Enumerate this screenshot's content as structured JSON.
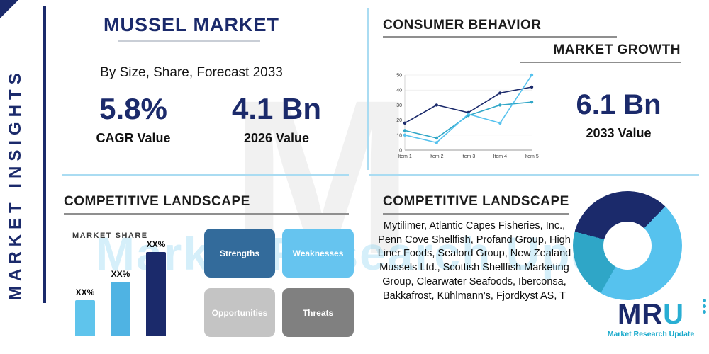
{
  "colors": {
    "navy": "#1b2a6b",
    "light_blue": "#56c2ee",
    "teal": "#2fa6c7",
    "steel_blue": "#336b9b",
    "light_gray": "#c2c2c2",
    "dark_gray": "#878787",
    "divider_blue": "#aadcf2"
  },
  "sidebar": {
    "label": "MARKET INSIGHTS"
  },
  "header": {
    "title": "MUSSEL MARKET",
    "subtitle": "By Size, Share, Forecast 2033"
  },
  "stats": {
    "cagr": {
      "value": "5.8%",
      "label": "CAGR Value"
    },
    "value_2026": {
      "value": "4.1 Bn",
      "label": "2026 Value"
    },
    "value_2033": {
      "value": "6.1 Bn",
      "label": "2033 Value"
    }
  },
  "sections": {
    "consumer_behavior": "CONSUMER BEHAVIOR",
    "market_growth": "MARKET GROWTH",
    "competitive_landscape_left": "COMPETITIVE LANDSCAPE",
    "competitive_landscape_right": "COMPETITIVE LANDSCAPE",
    "market_share": "MARKET SHARE"
  },
  "chart_data": [
    {
      "type": "line",
      "title": "Market Growth",
      "categories": [
        "Item 1",
        "Item 2",
        "Item 3",
        "Item 4",
        "Item 5"
      ],
      "ylim": [
        0,
        50
      ],
      "yticks": [
        0,
        10,
        20,
        30,
        40,
        50
      ],
      "grid": true,
      "legend": "none",
      "series": [
        {
          "name": "series-navy",
          "color": "#1b2a6b",
          "values": [
            18,
            30,
            25,
            38,
            42
          ]
        },
        {
          "name": "series-teal",
          "color": "#2fa6c7",
          "values": [
            13,
            8,
            23,
            30,
            32
          ]
        },
        {
          "name": "series-light-blue",
          "color": "#56c2ee",
          "values": [
            10,
            5,
            24,
            18,
            50
          ]
        }
      ]
    },
    {
      "type": "bar",
      "title": "Market Share",
      "categories": [
        "XX%",
        "XX%",
        "XX%"
      ],
      "values": [
        42,
        64,
        100
      ],
      "value_labels": [
        "XX%",
        "XX%",
        "XX%"
      ],
      "colors": [
        "#5fc4ec",
        "#4fb3e3",
        "#1b2a6b"
      ],
      "ylim": [
        0,
        100
      ]
    },
    {
      "type": "pie",
      "title": "Competitive Landscape",
      "donut": true,
      "start_angle_deg": 285,
      "slices": [
        {
          "name": "slice-navy",
          "value": 33,
          "color": "#1b2a6b"
        },
        {
          "name": "slice-light-blue",
          "value": 46,
          "color": "#56c2ee"
        },
        {
          "name": "slice-teal",
          "value": 21,
          "color": "#2fa6c7"
        }
      ]
    }
  ],
  "swot": {
    "items": [
      {
        "label": "Strengths",
        "color": "#336b9b"
      },
      {
        "label": "Weaknesses",
        "color": "#66c4ef"
      },
      {
        "label": "Opportunities",
        "color": "#c4c4c4"
      },
      {
        "label": "Threats",
        "color": "#808080"
      }
    ]
  },
  "companies": "Mytilimer, Atlantic Capes Fisheries, Inc., Penn Cove Shellfish, Profand Group, High Liner Foods, Sealord Group, New Zealand Mussels Ltd., Scottish Shellfish Marketing Group, Clearwater Seafoods, Iberconsa, Bakkafrost, Kühlmann's, Fjordkyst AS, T",
  "logo": {
    "letters": [
      "M",
      "R",
      "U"
    ],
    "subtext": "Market Research Update"
  },
  "watermark": {
    "letter": "M",
    "text": "Market Research Update"
  }
}
